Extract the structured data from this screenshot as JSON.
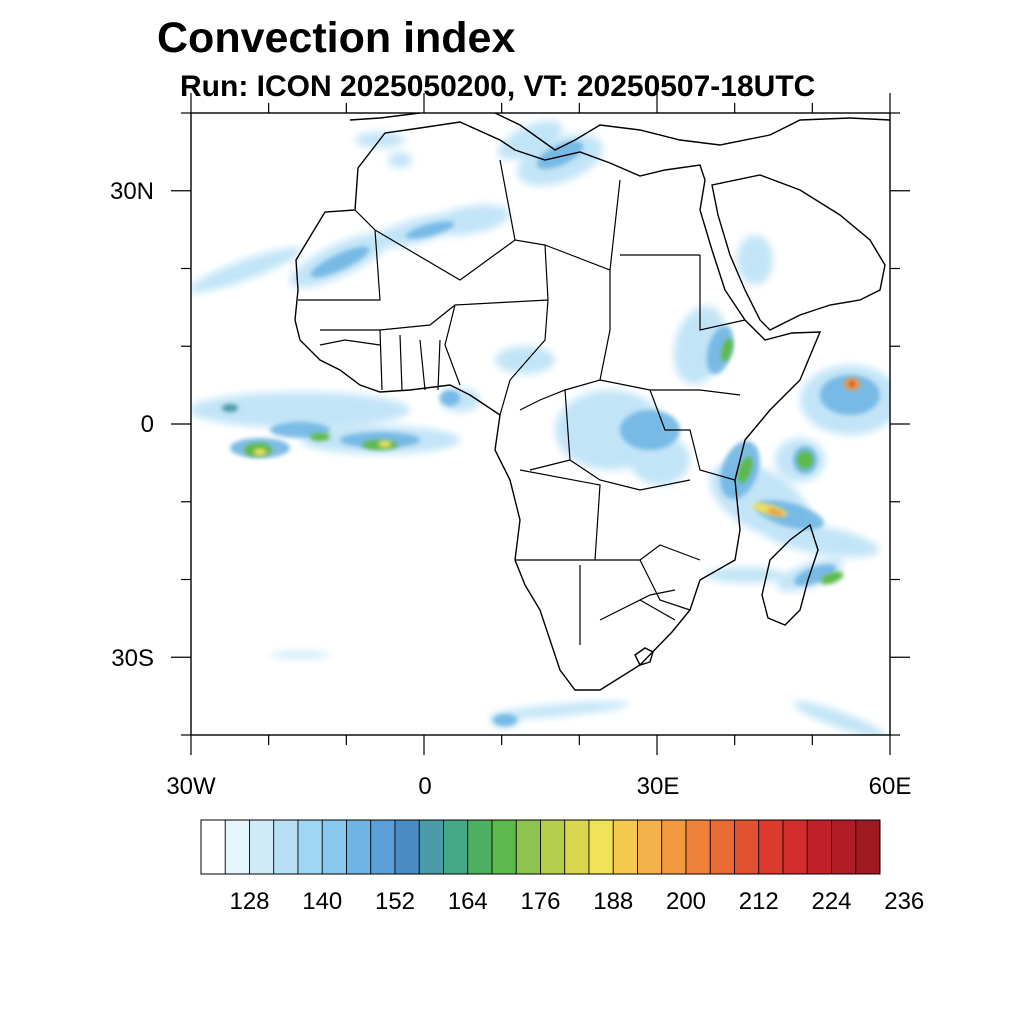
{
  "title": "Convection index",
  "subtitle": "Run: ICON 2025050200,  VT: 20250507-18UTC",
  "lat_labels": [
    "30N",
    "0",
    "30S"
  ],
  "lon_labels": [
    "30W",
    "0",
    "30E",
    "60E"
  ],
  "colorbar": {
    "colors": [
      "#ffffff",
      "#e6f4fb",
      "#cfeaf8",
      "#b7e0f6",
      "#9fd6f4",
      "#86c8ee",
      "#6fb5e4",
      "#5a9fd6",
      "#4a8cc4",
      "#4a9aa8",
      "#45a886",
      "#4cb060",
      "#5cba4a",
      "#8cc44e",
      "#b6ce4e",
      "#dcd64e",
      "#f2e25a",
      "#f6c84e",
      "#f4b04a",
      "#f29a40",
      "#ee823a",
      "#ea6a34",
      "#e2522e",
      "#dc3a2c",
      "#d22c2c",
      "#c02028",
      "#b01c26",
      "#9c1a20"
    ],
    "labels": [
      "128",
      "140",
      "152",
      "164",
      "176",
      "188",
      "200",
      "212",
      "224",
      "236"
    ]
  },
  "map": {
    "lon_range": [
      -30,
      60
    ],
    "lat_range": [
      -40,
      40
    ],
    "coastline_color": "#000000",
    "field_colors": {
      "light": "#b7e0f6",
      "mid": "#6fb5e4",
      "teal": "#4a9aa8",
      "green": "#5cba4a",
      "yellow": "#f2e25a",
      "orange": "#f29a40",
      "red": "#d22c2c"
    }
  }
}
